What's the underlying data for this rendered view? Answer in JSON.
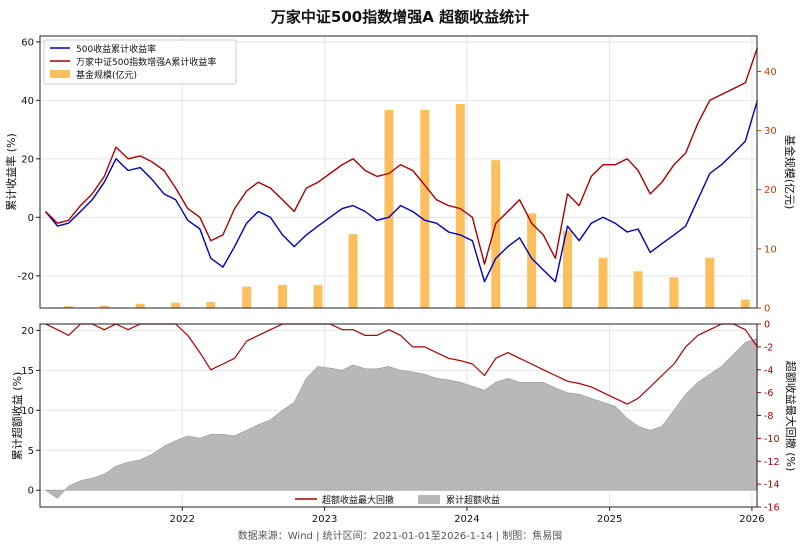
{
  "figure": {
    "title": "万家中证500指数增强A 超额收益统计",
    "footer": "数据来源：Wind | 统计区间：2021-01-01至2026-1-14 | 制图：焦易囤"
  },
  "colors": {
    "index": "#0000bb",
    "fund": "#aa0000",
    "aum_bar": "#fbbf5e",
    "drawdown": "#aa0000",
    "excess_area": "#b8b8b8",
    "right_axis_top": "#c04000",
    "right_axis_bottom": "#aa0000",
    "grid": "#e5e5e5"
  },
  "chart_data": [
    {
      "type": "line",
      "panel": "top",
      "ylabel": "累计收益率 (%)",
      "ylabel_right": "基金规模(亿元)",
      "ylim": [
        -31,
        62
      ],
      "yticks": [
        -20,
        0,
        20,
        40,
        60
      ],
      "y2lim": [
        0,
        46
      ],
      "y2ticks": [
        0,
        10,
        20,
        30,
        40
      ],
      "xlim": [
        "2021-01-01",
        "2026-01-14"
      ],
      "grid": true,
      "legend_position": "top-left",
      "legend": [
        "500收益累计收益率",
        "万家中证500指数增强A累计收益率",
        "基金规模(亿元)"
      ],
      "x": [
        "2021-01",
        "2021-02",
        "2021-03",
        "2021-04",
        "2021-05",
        "2021-06",
        "2021-07",
        "2021-08",
        "2021-09",
        "2021-10",
        "2021-11",
        "2021-12",
        "2022-01",
        "2022-02",
        "2022-03",
        "2022-04",
        "2022-05",
        "2022-06",
        "2022-07",
        "2022-08",
        "2022-09",
        "2022-10",
        "2022-11",
        "2022-12",
        "2023-01",
        "2023-02",
        "2023-03",
        "2023-04",
        "2023-05",
        "2023-06",
        "2023-07",
        "2023-08",
        "2023-09",
        "2023-10",
        "2023-11",
        "2023-12",
        "2024-01",
        "2024-02",
        "2024-03",
        "2024-04",
        "2024-05",
        "2024-06",
        "2024-07",
        "2024-08",
        "2024-09",
        "2024-10",
        "2024-11",
        "2024-12",
        "2025-01",
        "2025-02",
        "2025-03",
        "2025-04",
        "2025-05",
        "2025-06",
        "2025-07",
        "2025-08",
        "2025-09",
        "2025-10",
        "2025-11",
        "2025-12",
        "2026-01"
      ],
      "series": [
        {
          "name": "500收益累计收益率",
          "values": [
            2,
            -3,
            -2,
            2,
            6,
            12,
            20,
            16,
            17,
            13,
            8,
            6,
            -1,
            -4,
            -14,
            -17,
            -10,
            -2,
            2,
            0,
            -6,
            -10,
            -6,
            -3,
            0,
            3,
            4,
            2,
            -1,
            0,
            4,
            2,
            -1,
            -2,
            -5,
            -6,
            -8,
            -22,
            -14,
            -10,
            -7,
            -14,
            -18,
            -22,
            -3,
            -8,
            -2,
            0,
            -2,
            -5,
            -4,
            -12,
            -9,
            -6,
            -3,
            6,
            15,
            18,
            22,
            26,
            40
          ]
        },
        {
          "name": "万家中证500指数增强A累计收益率",
          "values": [
            2,
            -2,
            -1,
            4,
            8,
            14,
            24,
            20,
            21,
            19,
            16,
            10,
            3,
            0,
            -8,
            -6,
            3,
            9,
            12,
            10,
            6,
            2,
            10,
            12,
            15,
            18,
            20,
            16,
            14,
            15,
            18,
            16,
            11,
            6,
            4,
            3,
            0,
            -16,
            -2,
            2,
            6,
            -2,
            -6,
            -14,
            8,
            4,
            14,
            18,
            18,
            20,
            16,
            8,
            12,
            18,
            22,
            32,
            40,
            42,
            44,
            46,
            58
          ]
        },
        {
          "name": "基金规模(亿元)",
          "kind": "bar",
          "x": [
            "2021-03",
            "2021-06",
            "2021-09",
            "2021-12",
            "2022-03",
            "2022-06",
            "2022-09",
            "2022-12",
            "2023-03",
            "2023-06",
            "2023-09",
            "2023-12",
            "2024-03",
            "2024-06",
            "2024-09",
            "2024-12",
            "2025-03",
            "2025-06",
            "2025-09",
            "2025-12"
          ],
          "values": [
            0.3,
            0.4,
            0.7,
            0.9,
            1.0,
            3.6,
            3.9,
            3.9,
            12.5,
            33.5,
            33.5,
            34.5,
            25,
            16,
            13,
            8.5,
            6.2,
            5.2,
            8.5,
            1.4
          ]
        }
      ]
    },
    {
      "type": "area",
      "panel": "bottom",
      "ylabel": "累计超额收益 (%)",
      "ylabel_right": "超额收益最大回撤 (%)",
      "ylim": [
        -2.1,
        20.8
      ],
      "yticks": [
        0,
        5,
        10,
        15,
        20
      ],
      "y2lim": [
        -16,
        0
      ],
      "y2ticks": [
        0,
        -2,
        -4,
        -6,
        -8,
        -10,
        -12,
        -14,
        -16
      ],
      "xticks": [
        "2022",
        "2023",
        "2024",
        "2025",
        "2026"
      ],
      "grid": true,
      "legend_position": "bottom-center",
      "legend": [
        "超额收益最大回撤",
        "累计超额收益"
      ],
      "x": [
        "2021-01",
        "2021-02",
        "2021-03",
        "2021-04",
        "2021-05",
        "2021-06",
        "2021-07",
        "2021-08",
        "2021-09",
        "2021-10",
        "2021-11",
        "2021-12",
        "2022-01",
        "2022-02",
        "2022-03",
        "2022-04",
        "2022-05",
        "2022-06",
        "2022-07",
        "2022-08",
        "2022-09",
        "2022-10",
        "2022-11",
        "2022-12",
        "2023-01",
        "2023-02",
        "2023-03",
        "2023-04",
        "2023-05",
        "2023-06",
        "2023-07",
        "2023-08",
        "2023-09",
        "2023-10",
        "2023-11",
        "2023-12",
        "2024-01",
        "2024-02",
        "2024-03",
        "2024-04",
        "2024-05",
        "2024-06",
        "2024-07",
        "2024-08",
        "2024-09",
        "2024-10",
        "2024-11",
        "2024-12",
        "2025-01",
        "2025-02",
        "2025-03",
        "2025-04",
        "2025-05",
        "2025-06",
        "2025-07",
        "2025-08",
        "2025-09",
        "2025-10",
        "2025-11",
        "2025-12",
        "2026-01"
      ],
      "series": [
        {
          "name": "累计超额收益",
          "values": [
            0,
            -1,
            0.5,
            1.2,
            1.5,
            2,
            3,
            3.5,
            3.8,
            4.5,
            5.5,
            6.2,
            6.8,
            6.5,
            7,
            7,
            6.8,
            7.5,
            8.2,
            8.8,
            10,
            11,
            14,
            15.5,
            15.3,
            15,
            15.7,
            15.2,
            15.2,
            15.5,
            15,
            14.8,
            14.5,
            14,
            13.8,
            13.5,
            13,
            12.5,
            13.5,
            14,
            13.5,
            13.5,
            13.5,
            12.8,
            12.2,
            12,
            11.5,
            11,
            10.5,
            9,
            8,
            7.5,
            8,
            10,
            12,
            13.5,
            14.5,
            15.5,
            17,
            18.5,
            19
          ]
        },
        {
          "name": "超额收益最大回撤",
          "values": [
            0,
            -0.5,
            -1,
            0,
            0,
            -0.5,
            0,
            -0.5,
            0,
            0,
            0,
            0,
            -1,
            -2.5,
            -4,
            -3.5,
            -3,
            -1.5,
            -1,
            -0.5,
            0,
            0,
            0,
            0,
            0,
            -0.5,
            -0.5,
            -1,
            -1,
            -0.5,
            -1,
            -2,
            -2,
            -2.5,
            -3,
            -3.2,
            -3.5,
            -4.5,
            -3,
            -2.5,
            -3,
            -3.5,
            -4,
            -4.5,
            -5,
            -5.2,
            -5.5,
            -6,
            -6.5,
            -7,
            -6.5,
            -5.5,
            -4.5,
            -3.5,
            -2,
            -1,
            -0.5,
            0,
            0,
            -0.5,
            -2
          ]
        }
      ]
    }
  ]
}
